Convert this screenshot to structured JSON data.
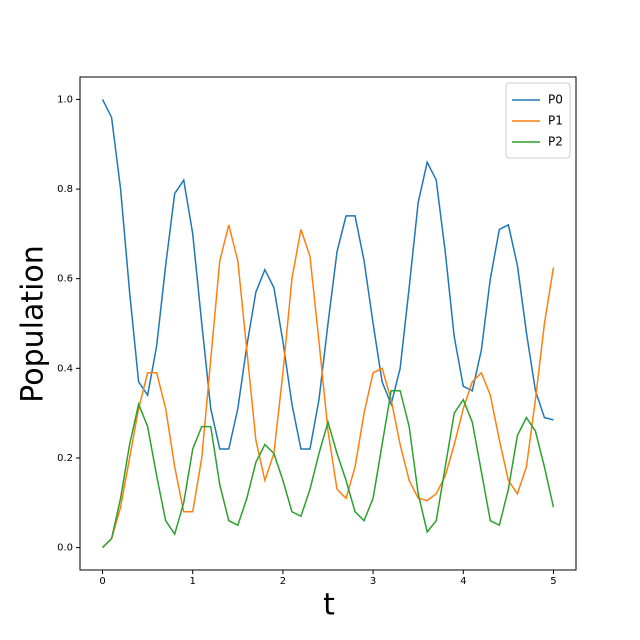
{
  "chart_data": {
    "type": "line",
    "xlabel": "t",
    "ylabel": "Population",
    "x": [
      0,
      0.1,
      0.2,
      0.3,
      0.4,
      0.5,
      0.6,
      0.7,
      0.8,
      0.9,
      1,
      1.1,
      1.2,
      1.3,
      1.4,
      1.5,
      1.6,
      1.7,
      1.8,
      1.9,
      2,
      2.1,
      2.2,
      2.3,
      2.4,
      2.5,
      2.6,
      2.7,
      2.8,
      2.9,
      3,
      3.1,
      3.2,
      3.3,
      3.4,
      3.5,
      3.6,
      3.7,
      3.8,
      3.9,
      4,
      4.1,
      4.2,
      4.3,
      4.4,
      4.5,
      4.6,
      4.7,
      4.8,
      4.9,
      5
    ],
    "series": [
      {
        "name": "P0",
        "color": "#1f77b4",
        "values": [
          1.0,
          0.96,
          0.8,
          0.57,
          0.37,
          0.34,
          0.45,
          0.63,
          0.79,
          0.82,
          0.7,
          0.5,
          0.31,
          0.22,
          0.22,
          0.31,
          0.45,
          0.57,
          0.62,
          0.58,
          0.46,
          0.32,
          0.22,
          0.22,
          0.33,
          0.5,
          0.66,
          0.74,
          0.74,
          0.64,
          0.5,
          0.37,
          0.32,
          0.4,
          0.58,
          0.77,
          0.86,
          0.82,
          0.66,
          0.47,
          0.36,
          0.35,
          0.44,
          0.6,
          0.71,
          0.72,
          0.63,
          0.48,
          0.35,
          0.29,
          0.285
        ]
      },
      {
        "name": "P1",
        "color": "#ff7f0e",
        "values": [
          0,
          0.02,
          0.09,
          0.2,
          0.31,
          0.39,
          0.39,
          0.31,
          0.18,
          0.08,
          0.08,
          0.2,
          0.42,
          0.64,
          0.72,
          0.64,
          0.44,
          0.24,
          0.15,
          0.21,
          0.39,
          0.6,
          0.71,
          0.65,
          0.46,
          0.26,
          0.13,
          0.11,
          0.18,
          0.3,
          0.39,
          0.4,
          0.33,
          0.23,
          0.15,
          0.11,
          0.105,
          0.12,
          0.16,
          0.23,
          0.31,
          0.37,
          0.39,
          0.34,
          0.24,
          0.15,
          0.12,
          0.18,
          0.33,
          0.5,
          0.625
        ]
      },
      {
        "name": "P2",
        "color": "#2ca02c",
        "values": [
          0,
          0.02,
          0.11,
          0.23,
          0.32,
          0.27,
          0.16,
          0.06,
          0.03,
          0.1,
          0.22,
          0.27,
          0.27,
          0.14,
          0.06,
          0.05,
          0.11,
          0.19,
          0.23,
          0.21,
          0.15,
          0.08,
          0.07,
          0.13,
          0.21,
          0.28,
          0.21,
          0.15,
          0.08,
          0.06,
          0.11,
          0.23,
          0.35,
          0.35,
          0.27,
          0.12,
          0.035,
          0.06,
          0.18,
          0.3,
          0.33,
          0.28,
          0.17,
          0.06,
          0.05,
          0.13,
          0.25,
          0.29,
          0.26,
          0.18,
          0.09
        ]
      }
    ],
    "xlim": [
      -0.25,
      5.25
    ],
    "ylim": [
      -0.05,
      1.05
    ],
    "xticks": [
      0,
      1,
      2,
      3,
      4,
      5
    ],
    "yticks": [
      {
        "value": 0,
        "label": "0.0"
      },
      {
        "value": 0.2,
        "label": "0.2"
      },
      {
        "value": 0.4,
        "label": "0.4"
      },
      {
        "value": 0.6,
        "label": "0.6"
      },
      {
        "value": 0.8,
        "label": "0.8"
      },
      {
        "value": 1,
        "label": "1.0"
      }
    ],
    "legend": "upper right",
    "grid": false
  }
}
